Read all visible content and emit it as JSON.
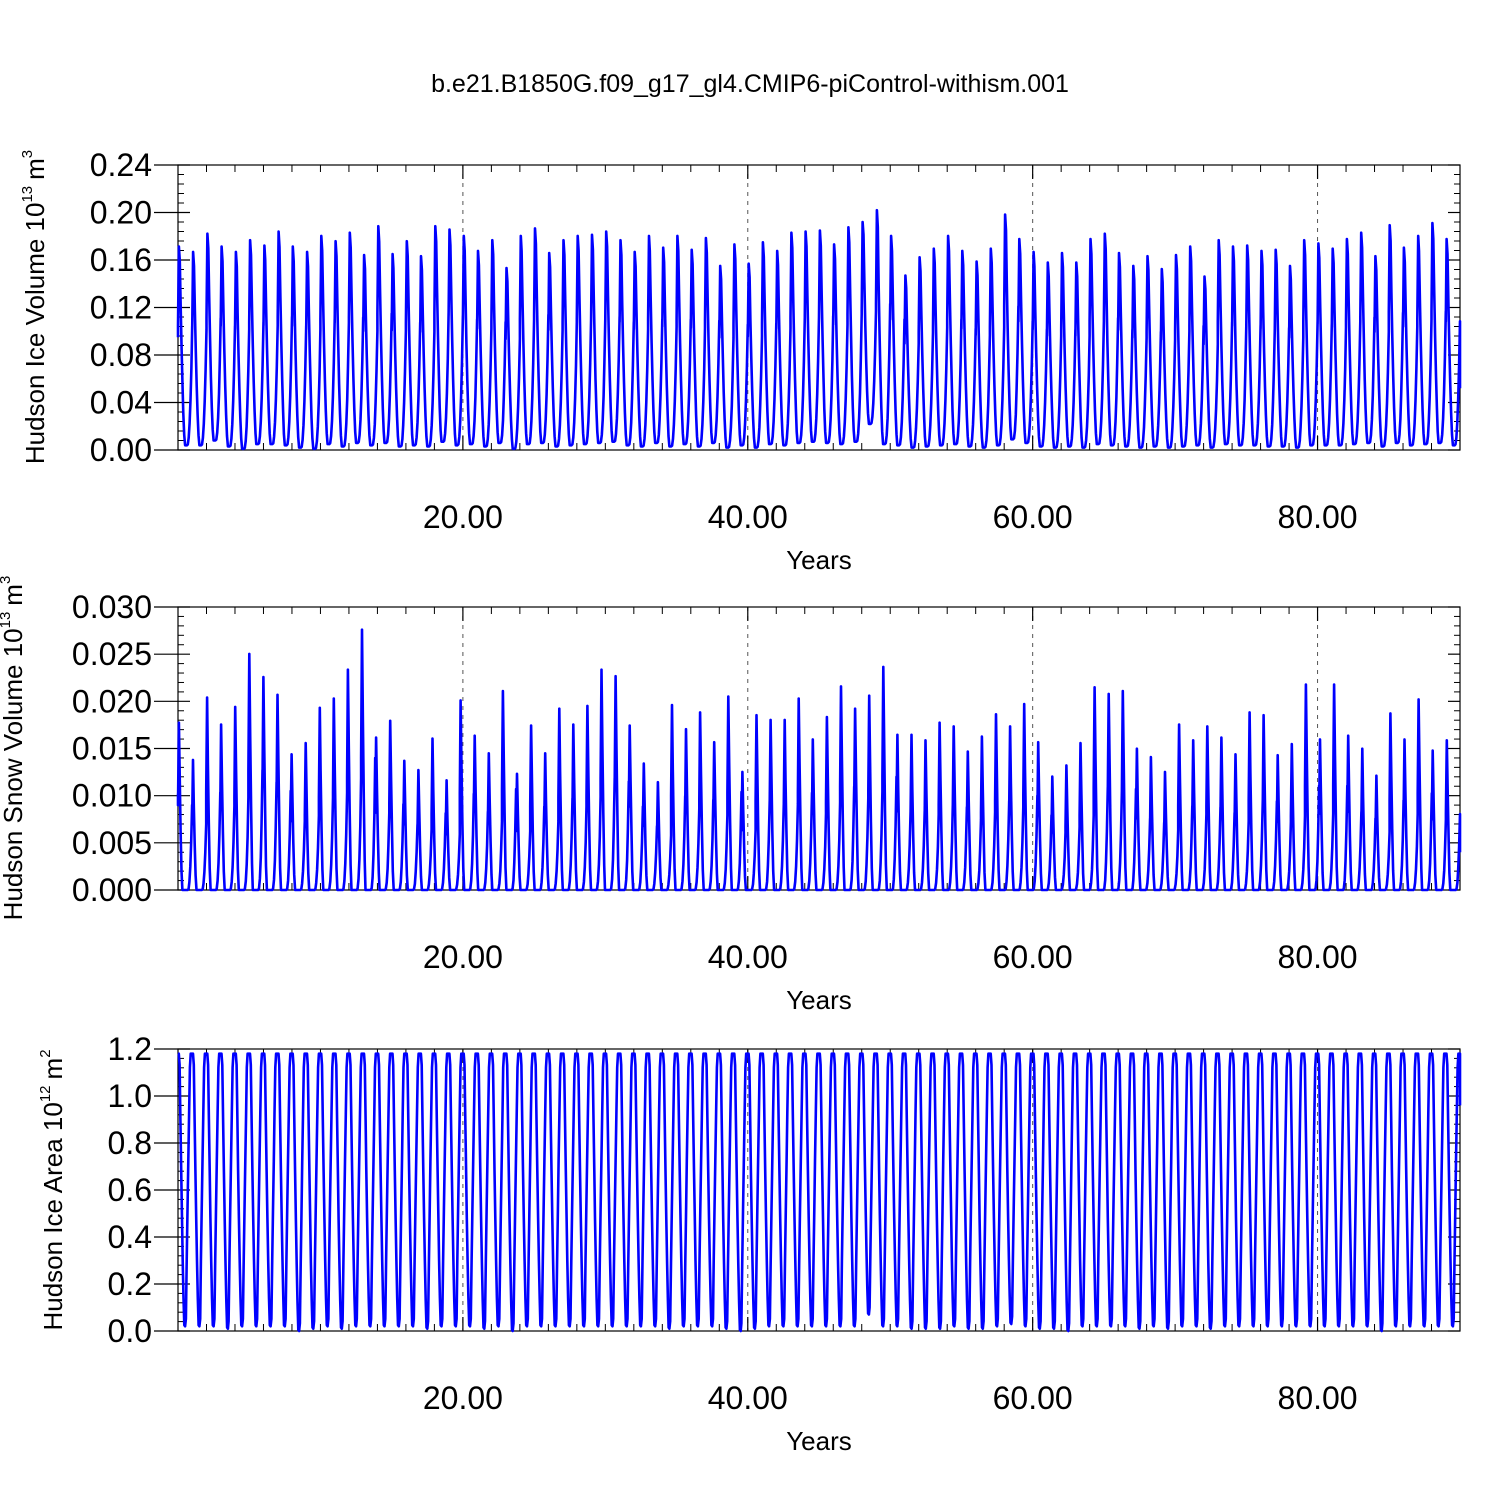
{
  "title": "b.e21.B1850G.f09_g17_gl4.CMIP6-piControl-withism.001",
  "colors": {
    "series": "#0000ff",
    "axis": "#000000",
    "grid": "#555555"
  },
  "chart_data": [
    {
      "type": "line",
      "ylabel_main": "Hudson Ice Volume 10",
      "ylabel_exp": "13",
      "ylabel_unit": "m",
      "ylabel_unit_exp": "3",
      "xlabel": "Years",
      "xlim": [
        0,
        90
      ],
      "ylim": [
        0,
        0.24
      ],
      "x_ticks": [
        20,
        40,
        60,
        80
      ],
      "x_tick_labels": [
        "20.00",
        "40.00",
        "60.00",
        "80.00"
      ],
      "y_ticks": [
        0,
        0.04,
        0.08,
        0.12,
        0.16,
        0.2,
        0.24
      ],
      "y_tick_labels": [
        "0.00",
        "0.04",
        "0.08",
        "0.12",
        "0.16",
        "0.20",
        "0.24"
      ],
      "grid": "dashed vertical at x ticks",
      "series": [
        {
          "cycle": "annual",
          "start_value": 0.095,
          "end_value": 0.052,
          "annual_maxima": [
            0.19,
            0.185,
            0.202,
            0.19,
            0.185,
            0.196,
            0.191,
            0.204,
            0.19,
            0.185,
            0.2,
            0.195,
            0.203,
            0.182,
            0.209,
            0.183,
            0.195,
            0.181,
            0.209,
            0.206,
            0.2,
            0.186,
            0.196,
            0.17,
            0.2,
            0.207,
            0.184,
            0.196,
            0.2,
            0.201,
            0.204,
            0.196,
            0.185,
            0.2,
            0.189,
            0.2,
            0.187,
            0.198,
            0.172,
            0.192,
            0.174,
            0.194,
            0.186,
            0.203,
            0.204,
            0.205,
            0.192,
            0.208,
            0.213,
            0.224,
            0.2,
            0.163,
            0.18,
            0.188,
            0.2,
            0.186,
            0.176,
            0.188,
            0.22,
            0.197,
            0.185,
            0.175,
            0.184,
            0.175,
            0.197,
            0.202,
            0.184,
            0.172,
            0.181,
            0.169,
            0.182,
            0.19,
            0.162,
            0.196,
            0.19,
            0.191,
            0.186,
            0.187,
            0.172,
            0.196,
            0.193,
            0.188,
            0.197,
            0.203,
            0.181,
            0.21,
            0.189,
            0.2,
            0.212,
            0.197
          ],
          "annual_minima": [
            0.004,
            0.004,
            0.008,
            0.003,
            0.001,
            0.005,
            0.005,
            0.004,
            0.002,
            0.001,
            0.005,
            0.003,
            0.006,
            0.004,
            0.006,
            0.003,
            0.004,
            0.003,
            0.007,
            0.004,
            0.005,
            0.003,
            0.006,
            0.001,
            0.005,
            0.006,
            0.003,
            0.004,
            0.005,
            0.006,
            0.007,
            0.004,
            0.003,
            0.006,
            0.003,
            0.005,
            0.003,
            0.006,
            0.002,
            0.004,
            0.002,
            0.005,
            0.004,
            0.006,
            0.007,
            0.006,
            0.005,
            0.007,
            0.022,
            0.005,
            0.004,
            0.002,
            0.003,
            0.004,
            0.005,
            0.003,
            0.002,
            0.004,
            0.009,
            0.006,
            0.003,
            0.002,
            0.003,
            0.002,
            0.005,
            0.004,
            0.003,
            0.002,
            0.003,
            0.002,
            0.003,
            0.004,
            0.002,
            0.005,
            0.004,
            0.004,
            0.003,
            0.003,
            0.002,
            0.004,
            0.004,
            0.004,
            0.005,
            0.006,
            0.003,
            0.006,
            0.004,
            0.005,
            0.006,
            0.004
          ]
        }
      ]
    },
    {
      "type": "line",
      "ylabel_main": "Hudson Snow Volume 10",
      "ylabel_exp": "13",
      "ylabel_unit": "m",
      "ylabel_unit_exp": "3",
      "xlabel": "Years",
      "xlim": [
        0,
        90
      ],
      "ylim": [
        0,
        0.03
      ],
      "x_ticks": [
        20,
        40,
        60,
        80
      ],
      "x_tick_labels": [
        "20.00",
        "40.00",
        "60.00",
        "80.00"
      ],
      "y_ticks": [
        0,
        0.005,
        0.01,
        0.015,
        0.02,
        0.025,
        0.03
      ],
      "y_tick_labels": [
        "0.000",
        "0.005",
        "0.010",
        "0.015",
        "0.020",
        "0.025",
        "0.030"
      ],
      "grid": "dashed vertical at x ticks",
      "series": [
        {
          "cycle": "annual",
          "start_value": 0.0102,
          "end_value": 0.004,
          "annual_maxima": [
            0.018,
            0.014,
            0.0207,
            0.0178,
            0.0197,
            0.0254,
            0.0229,
            0.021,
            0.0146,
            0.0158,
            0.0196,
            0.0206,
            0.0237,
            0.028,
            0.0164,
            0.0182,
            0.0139,
            0.0129,
            0.0163,
            0.0118,
            0.0204,
            0.0166,
            0.0147,
            0.0214,
            0.0125,
            0.0177,
            0.0147,
            0.0195,
            0.0178,
            0.0198,
            0.0237,
            0.023,
            0.0177,
            0.0136,
            0.0116,
            0.0199,
            0.0173,
            0.0191,
            0.0159,
            0.0208,
            0.0127,
            0.0188,
            0.0183,
            0.0183,
            0.0206,
            0.0162,
            0.0186,
            0.0219,
            0.0195,
            0.0209,
            0.024,
            0.0167,
            0.0167,
            0.0161,
            0.018,
            0.0176,
            0.0149,
            0.0165,
            0.0189,
            0.0176,
            0.02,
            0.0159,
            0.0122,
            0.0134,
            0.0158,
            0.0218,
            0.0211,
            0.0214,
            0.0152,
            0.0143,
            0.0127,
            0.0178,
            0.0161,
            0.0176,
            0.0164,
            0.0146,
            0.0191,
            0.0188,
            0.0145,
            0.0157,
            0.0221,
            0.0162,
            0.0221,
            0.0166,
            0.0152,
            0.0123,
            0.019,
            0.0162,
            0.0205,
            0.015,
            0.0161
          ],
          "annual_minima": [
            0,
            0,
            0,
            0,
            0,
            0,
            0,
            0,
            0,
            0,
            0,
            0,
            0,
            0,
            0,
            0,
            0,
            0,
            0,
            0,
            0,
            0,
            0,
            0,
            0,
            0,
            0,
            0,
            0,
            0,
            0,
            0,
            0,
            0,
            0,
            0,
            0,
            0,
            0,
            0,
            0,
            0,
            0,
            0,
            0,
            0,
            0,
            0,
            0,
            0,
            0,
            0,
            0,
            0,
            0,
            0,
            0,
            0,
            0,
            0,
            0,
            0,
            0,
            0,
            0,
            0,
            0,
            0,
            0,
            0,
            0,
            0,
            0,
            0,
            0,
            0,
            0,
            0,
            0,
            0,
            0,
            0,
            0,
            0,
            0,
            0,
            0,
            0,
            0,
            0,
            0
          ]
        }
      ]
    },
    {
      "type": "line",
      "ylabel_main": "Hudson Ice Area 10",
      "ylabel_exp": "12",
      "ylabel_unit": "m",
      "ylabel_unit_exp": "2",
      "xlabel": "Years",
      "xlim": [
        0,
        90
      ],
      "ylim": [
        0,
        1.2
      ],
      "x_ticks": [
        20,
        40,
        60,
        80
      ],
      "x_tick_labels": [
        "20.00",
        "40.00",
        "60.00",
        "80.00"
      ],
      "y_ticks": [
        0,
        0.2,
        0.4,
        0.6,
        0.8,
        1.0,
        1.2
      ],
      "y_tick_labels": [
        "0.0",
        "0.2",
        "0.4",
        "0.6",
        "0.8",
        "1.0",
        "1.2"
      ],
      "grid": "dashed vertical at x ticks",
      "series": [
        {
          "cycle": "annual",
          "start_value": 1.18,
          "end_value": 0.96,
          "plateau_value": 1.18,
          "annual_minima": [
            0.02,
            0.02,
            0.02,
            0.01,
            0.02,
            0.02,
            0.02,
            0.02,
            0.0,
            0.01,
            0.02,
            0.01,
            0.02,
            0.02,
            0.02,
            0.02,
            0.02,
            0.01,
            0.02,
            0.02,
            0.02,
            0.01,
            0.02,
            0.0,
            0.02,
            0.02,
            0.02,
            0.02,
            0.02,
            0.02,
            0.02,
            0.02,
            0.02,
            0.02,
            0.01,
            0.02,
            0.02,
            0.02,
            0.01,
            0.0,
            0.01,
            0.02,
            0.02,
            0.02,
            0.02,
            0.02,
            0.02,
            0.02,
            0.07,
            0.02,
            0.02,
            0.01,
            0.01,
            0.01,
            0.02,
            0.01,
            0.01,
            0.02,
            0.03,
            0.02,
            0.01,
            0.01,
            0.0,
            0.02,
            0.02,
            0.02,
            0.02,
            0.01,
            0.02,
            0.01,
            0.02,
            0.02,
            0.01,
            0.02,
            0.02,
            0.02,
            0.02,
            0.02,
            0.02,
            0.02,
            0.02,
            0.02,
            0.02,
            0.02,
            0.0,
            0.02,
            0.02,
            0.02,
            0.02,
            0.02
          ]
        }
      ]
    }
  ]
}
